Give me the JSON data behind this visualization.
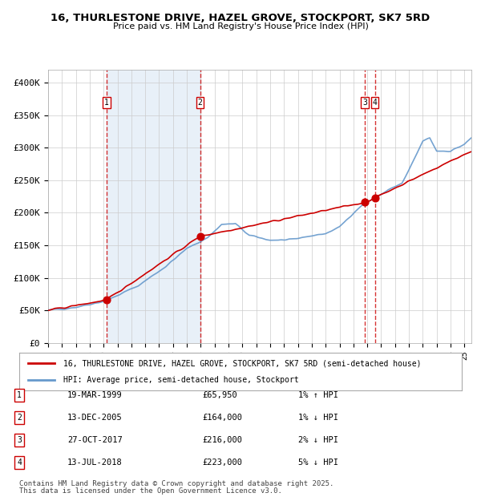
{
  "title": "16, THURLESTONE DRIVE, HAZEL GROVE, STOCKPORT, SK7 5RD",
  "subtitle": "Price paid vs. HM Land Registry's House Price Index (HPI)",
  "legend_property": "16, THURLESTONE DRIVE, HAZEL GROVE, STOCKPORT, SK7 5RD (semi-detached house)",
  "legend_hpi": "HPI: Average price, semi-detached house, Stockport",
  "footer1": "Contains HM Land Registry data © Crown copyright and database right 2025.",
  "footer2": "This data is licensed under the Open Government Licence v3.0.",
  "transactions": [
    {
      "num": 1,
      "date": "19-MAR-1999",
      "price": 65950,
      "pct": "1%",
      "dir": "↑"
    },
    {
      "num": 2,
      "date": "13-DEC-2005",
      "price": 164000,
      "pct": "1%",
      "dir": "↓"
    },
    {
      "num": 3,
      "date": "27-OCT-2017",
      "price": 216000,
      "pct": "2%",
      "dir": "↓"
    },
    {
      "num": 4,
      "date": "13-JUL-2018",
      "price": 223000,
      "pct": "5%",
      "dir": "↓"
    }
  ],
  "transaction_years": [
    1999.21,
    2005.95,
    2017.82,
    2018.54
  ],
  "transaction_prices": [
    65950,
    164000,
    216000,
    223000
  ],
  "ylim": [
    0,
    420000
  ],
  "yticks": [
    0,
    50000,
    100000,
    150000,
    200000,
    250000,
    300000,
    350000,
    400000
  ],
  "ytick_labels": [
    "£0",
    "£50K",
    "£100K",
    "£150K",
    "£200K",
    "£250K",
    "£300K",
    "£350K",
    "£400K"
  ],
  "xlim_start": 1995.0,
  "xlim_end": 2025.5,
  "bg_color": "#e8f0f8",
  "plot_bg": "#ffffff",
  "line_color_property": "#cc0000",
  "line_color_hpi": "#6699cc",
  "shade_between_x1": 1999.21,
  "shade_between_x2": 2005.95,
  "grid_color": "#cccccc",
  "dashed_line_color": "#cc0000"
}
